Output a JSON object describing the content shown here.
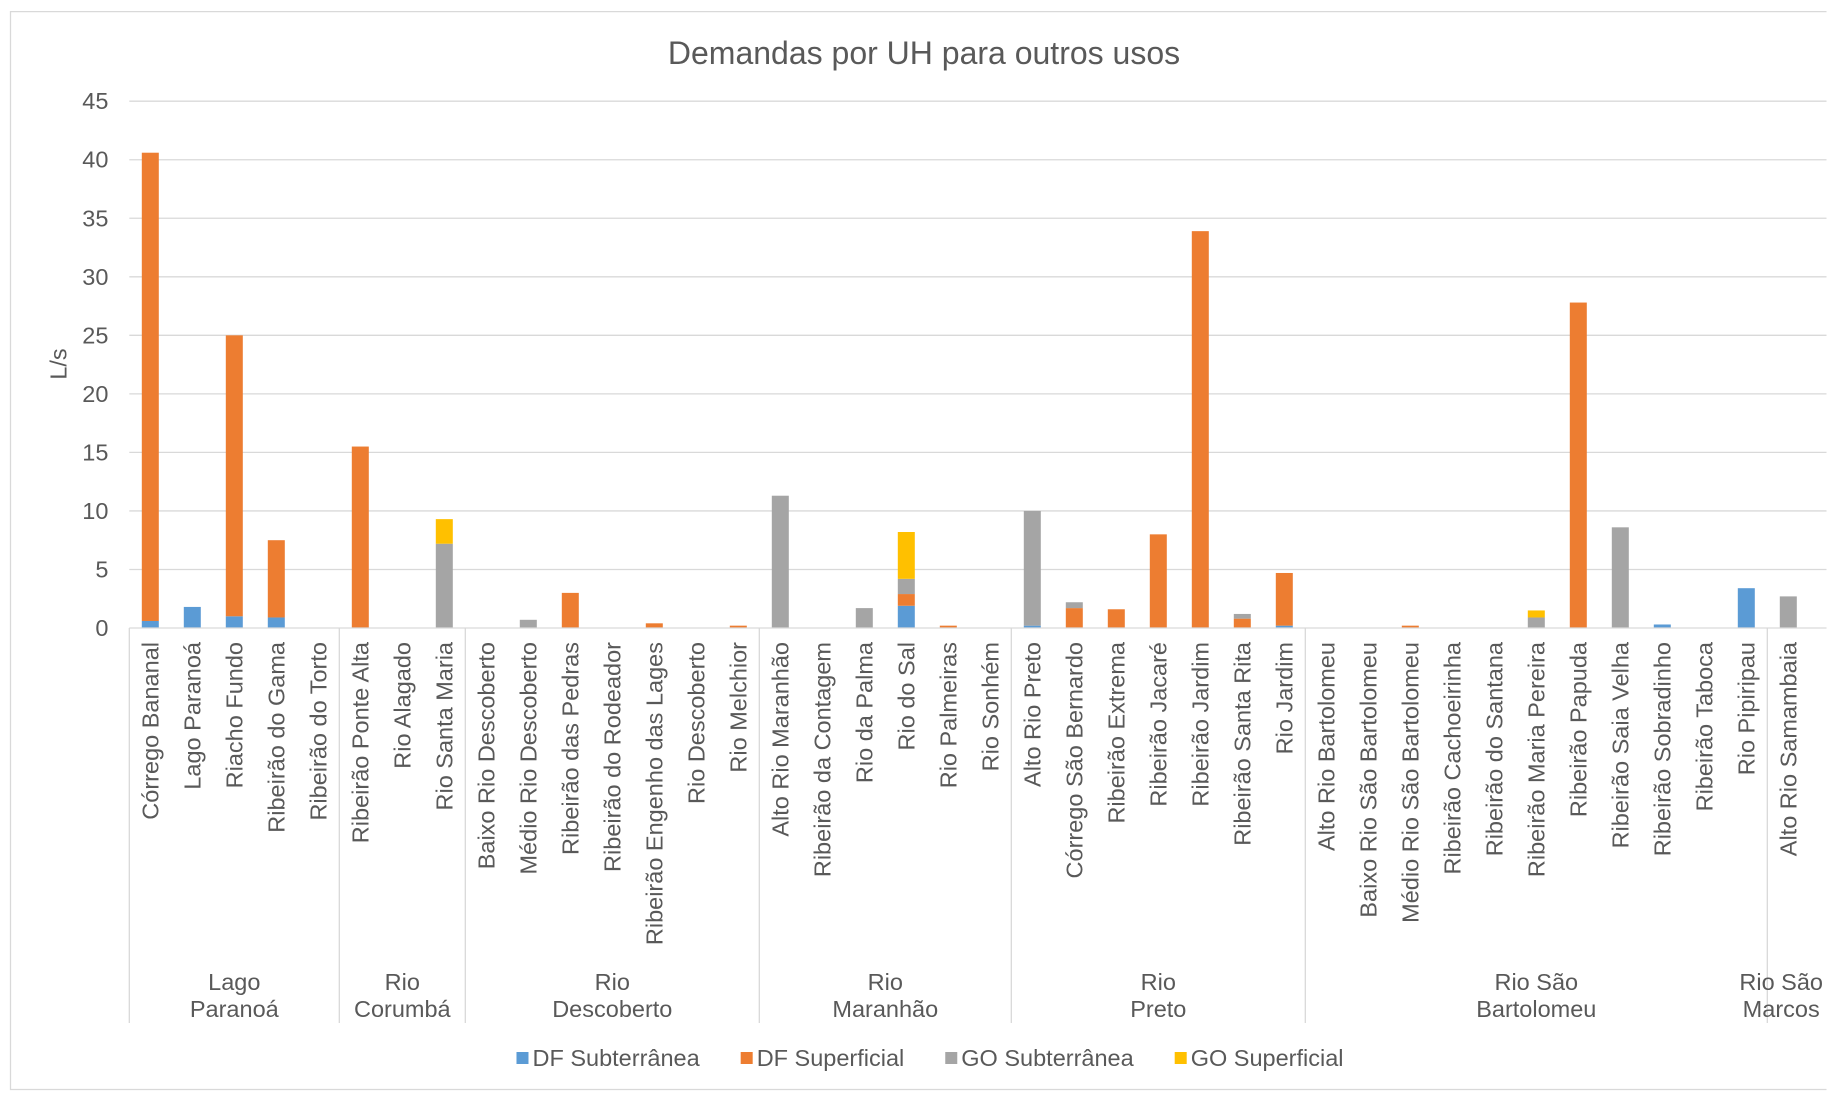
{
  "chart_data": {
    "type": "bar",
    "stacked": true,
    "title": "Demandas por UH para outros usos",
    "ylabel": "L/s",
    "ylim": [
      0,
      45
    ],
    "yticks": [
      0,
      5,
      10,
      15,
      20,
      25,
      30,
      35,
      40,
      45
    ],
    "grid": true,
    "legend_position": "bottom",
    "groups": [
      {
        "label_lines": [
          "Lago",
          "Paranoá"
        ],
        "categories": [
          "Córrego Bananal",
          "Lago Paranoá",
          "Riacho Fundo",
          "Ribeirão do Gama",
          "Ribeirão do Torto"
        ]
      },
      {
        "label_lines": [
          "Rio",
          "Corumbá"
        ],
        "categories": [
          "Ribeirão Ponte Alta",
          "Rio Alagado",
          "Rio Santa Maria"
        ]
      },
      {
        "label_lines": [
          "Rio",
          "Descoberto"
        ],
        "categories": [
          "Baixo Rio Descoberto",
          "Médio Rio Descoberto",
          "Ribeirão das Pedras",
          "Ribeirão do Rodeador",
          "Ribeirão Engenho das Lages",
          "Rio Descoberto",
          "Rio Melchior"
        ]
      },
      {
        "label_lines": [
          "Rio",
          "Maranhão"
        ],
        "categories": [
          "Alto Rio Maranhão",
          "Ribeirão da Contagem",
          "Rio da Palma",
          "Rio do Sal",
          "Rio Palmeiras",
          "Rio Sonhém"
        ]
      },
      {
        "label_lines": [
          "Rio",
          "Preto"
        ],
        "categories": [
          "Alto Rio Preto",
          "Córrego São Bernardo",
          "Ribeirão Extrema",
          "Ribeirão Jacaré",
          "Ribeirão Jardim",
          "Ribeirão Santa Rita",
          "Rio Jardim"
        ]
      },
      {
        "label_lines": [
          "Rio São",
          "Bartolomeu"
        ],
        "categories": [
          "Alto Rio Bartolomeu",
          "Baixo Rio São Bartolomeu",
          "Médio Rio São Bartolomeu",
          "Ribeirão Cachoeirinha",
          "Ribeirão do Santana",
          "Ribeirão Maria Pereira",
          "Ribeirão Papuda",
          "Ribeirão Saia Velha",
          "Ribeirão Sobradinho",
          "Ribeirão Taboca",
          "Rio Pipiripau"
        ]
      },
      {
        "label_lines": [
          "Rio São",
          "Marcos"
        ],
        "categories": [
          "Alto Rio Samambaia"
        ]
      }
    ],
    "series": [
      {
        "name": "DF Subterrânea",
        "color": "#5B9BD5",
        "values": [
          0.6,
          1.8,
          1.0,
          0.9,
          0,
          0,
          0,
          0,
          0,
          0,
          0,
          0,
          0,
          0,
          0,
          0,
          0,
          0,
          1.9,
          0,
          0,
          0.2,
          0,
          0,
          0,
          0,
          0,
          0.2,
          0,
          0,
          0,
          0,
          0,
          0,
          0,
          0,
          0.3,
          0,
          3.4,
          0
        ]
      },
      {
        "name": "DF Superficial",
        "color": "#ED7D31",
        "values": [
          40.0,
          0,
          24.0,
          6.6,
          0,
          15.5,
          0,
          0,
          0,
          0,
          3.0,
          0,
          0.4,
          0,
          0.2,
          0,
          0,
          0,
          1.0,
          0.2,
          0,
          0,
          1.7,
          1.6,
          8.0,
          33.9,
          0.8,
          4.5,
          0,
          0,
          0.2,
          0,
          0,
          0,
          27.8,
          0,
          0,
          0,
          0,
          0
        ]
      },
      {
        "name": "GO Subterrânea",
        "color": "#A5A5A5",
        "values": [
          0,
          0,
          0,
          0,
          0,
          0,
          0,
          7.2,
          0,
          0.7,
          0,
          0,
          0,
          0,
          0,
          11.3,
          0,
          1.7,
          1.3,
          0,
          0,
          9.8,
          0.5,
          0,
          0,
          0,
          0.4,
          0,
          0,
          0,
          0,
          0,
          0,
          0.9,
          0,
          8.6,
          0,
          0,
          0,
          2.7
        ]
      },
      {
        "name": "GO Superficial",
        "color": "#FFC000",
        "values": [
          0,
          0,
          0,
          0,
          0,
          0,
          0,
          2.1,
          0,
          0,
          0,
          0,
          0,
          0,
          0,
          0,
          0,
          0,
          4.0,
          0,
          0,
          0,
          0,
          0,
          0,
          0,
          0,
          0,
          0,
          0,
          0,
          0,
          0,
          0.6,
          0,
          0,
          0,
          0,
          0,
          0
        ]
      }
    ]
  }
}
